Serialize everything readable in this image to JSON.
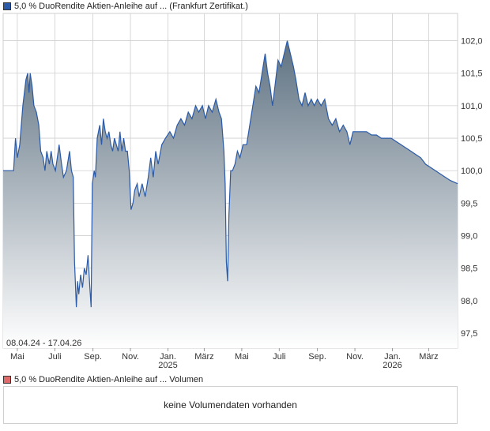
{
  "price_legend": "5,0 % DuoRendite Aktien-Anleihe auf ... (Frankfurt Zertifikat.)",
  "volume_legend": "5,0 % DuoRendite Aktien-Anleihe auf ... Volumen",
  "volume_message": "keine Volumendaten vorhanden",
  "colors": {
    "line": "#2a5aa8",
    "fill_top": "#5f7282",
    "fill_bottom": "#ffffff",
    "grid": "#cfcfcf",
    "volume_swatch": "#e06a6a"
  },
  "chart_data": {
    "type": "area",
    "date_range_label": "08.04.24 - 17.04.26",
    "x_labels": [
      {
        "text": "Mai",
        "sub": "",
        "date": "2024-05-01"
      },
      {
        "text": "Juli",
        "sub": "",
        "date": "2024-07-01"
      },
      {
        "text": "Sep.",
        "sub": "",
        "date": "2024-09-01"
      },
      {
        "text": "Nov.",
        "sub": "",
        "date": "2024-11-01"
      },
      {
        "text": "Jan.",
        "sub": "2025",
        "date": "2025-01-01"
      },
      {
        "text": "März",
        "sub": "",
        "date": "2025-03-01"
      },
      {
        "text": "Mai",
        "sub": "",
        "date": "2025-05-01"
      },
      {
        "text": "Juli",
        "sub": "",
        "date": "2025-07-01"
      },
      {
        "text": "Sep.",
        "sub": "",
        "date": "2025-09-01"
      },
      {
        "text": "Nov.",
        "sub": "",
        "date": "2025-11-01"
      },
      {
        "text": "Jan.",
        "sub": "2026",
        "date": "2026-01-01"
      },
      {
        "text": "März",
        "sub": "",
        "date": "2026-03-01"
      }
    ],
    "y_ticks": [
      "97,5",
      "98,0",
      "98,5",
      "99,0",
      "99,5",
      "100,0",
      "100,5",
      "101,0",
      "101,5",
      "102,0"
    ],
    "ylim": [
      97.27,
      102.42
    ],
    "xlim": [
      "2024-04-08",
      "2026-04-17"
    ],
    "grid": true,
    "series": [
      {
        "values": [
          [
            "2024-04-08",
            100.0
          ],
          [
            "2024-04-25",
            100.0
          ],
          [
            "2024-04-28",
            100.5
          ],
          [
            "2024-05-01",
            100.2
          ],
          [
            "2024-05-05",
            100.4
          ],
          [
            "2024-05-10",
            101.0
          ],
          [
            "2024-05-15",
            101.4
          ],
          [
            "2024-05-18",
            101.5
          ],
          [
            "2024-05-20",
            101.2
          ],
          [
            "2024-05-22",
            101.5
          ],
          [
            "2024-05-25",
            101.3
          ],
          [
            "2024-05-28",
            101.0
          ],
          [
            "2024-06-01",
            100.9
          ],
          [
            "2024-06-05",
            100.7
          ],
          [
            "2024-06-08",
            100.3
          ],
          [
            "2024-06-12",
            100.2
          ],
          [
            "2024-06-15",
            100.0
          ],
          [
            "2024-06-18",
            100.3
          ],
          [
            "2024-06-22",
            100.1
          ],
          [
            "2024-06-25",
            100.3
          ],
          [
            "2024-06-28",
            100.1
          ],
          [
            "2024-07-02",
            100.0
          ],
          [
            "2024-07-05",
            100.2
          ],
          [
            "2024-07-08",
            100.4
          ],
          [
            "2024-07-12",
            100.1
          ],
          [
            "2024-07-15",
            99.9
          ],
          [
            "2024-07-20",
            100.0
          ],
          [
            "2024-07-25",
            100.3
          ],
          [
            "2024-07-28",
            100.0
          ],
          [
            "2024-07-31",
            99.9
          ],
          [
            "2024-08-02",
            98.6
          ],
          [
            "2024-08-05",
            97.9
          ],
          [
            "2024-08-07",
            98.3
          ],
          [
            "2024-08-09",
            98.1
          ],
          [
            "2024-08-12",
            98.4
          ],
          [
            "2024-08-15",
            98.2
          ],
          [
            "2024-08-18",
            98.5
          ],
          [
            "2024-08-21",
            98.4
          ],
          [
            "2024-08-24",
            98.7
          ],
          [
            "2024-08-27",
            98.2
          ],
          [
            "2024-08-29",
            97.9
          ],
          [
            "2024-08-31",
            99.8
          ],
          [
            "2024-09-03",
            100.0
          ],
          [
            "2024-09-05",
            99.9
          ],
          [
            "2024-09-08",
            100.5
          ],
          [
            "2024-09-12",
            100.7
          ],
          [
            "2024-09-15",
            100.4
          ],
          [
            "2024-09-18",
            100.8
          ],
          [
            "2024-09-21",
            100.6
          ],
          [
            "2024-09-24",
            100.5
          ],
          [
            "2024-09-27",
            100.6
          ],
          [
            "2024-09-30",
            100.4
          ],
          [
            "2024-10-03",
            100.3
          ],
          [
            "2024-10-06",
            100.5
          ],
          [
            "2024-10-09",
            100.4
          ],
          [
            "2024-10-12",
            100.3
          ],
          [
            "2024-10-15",
            100.6
          ],
          [
            "2024-10-18",
            100.3
          ],
          [
            "2024-10-21",
            100.5
          ],
          [
            "2024-10-24",
            100.3
          ],
          [
            "2024-10-27",
            100.3
          ],
          [
            "2024-10-30",
            100.0
          ],
          [
            "2024-11-02",
            99.4
          ],
          [
            "2024-11-05",
            99.5
          ],
          [
            "2024-11-08",
            99.7
          ],
          [
            "2024-11-12",
            99.8
          ],
          [
            "2024-11-15",
            99.6
          ],
          [
            "2024-11-20",
            99.8
          ],
          [
            "2024-11-25",
            99.6
          ],
          [
            "2024-11-30",
            99.9
          ],
          [
            "2024-12-04",
            100.2
          ],
          [
            "2024-12-08",
            99.9
          ],
          [
            "2024-12-12",
            100.3
          ],
          [
            "2024-12-16",
            100.1
          ],
          [
            "2024-12-22",
            100.4
          ],
          [
            "2024-12-28",
            100.5
          ],
          [
            "2025-01-04",
            100.6
          ],
          [
            "2025-01-10",
            100.5
          ],
          [
            "2025-01-16",
            100.7
          ],
          [
            "2025-01-22",
            100.8
          ],
          [
            "2025-01-28",
            100.7
          ],
          [
            "2025-02-03",
            100.9
          ],
          [
            "2025-02-09",
            100.8
          ],
          [
            "2025-02-15",
            101.0
          ],
          [
            "2025-02-20",
            100.9
          ],
          [
            "2025-02-26",
            101.0
          ],
          [
            "2025-03-03",
            100.8
          ],
          [
            "2025-03-08",
            101.0
          ],
          [
            "2025-03-14",
            100.9
          ],
          [
            "2025-03-20",
            101.1
          ],
          [
            "2025-03-25",
            100.9
          ],
          [
            "2025-03-29",
            100.8
          ],
          [
            "2025-04-02",
            100.3
          ],
          [
            "2025-04-04",
            99.8
          ],
          [
            "2025-04-06",
            98.6
          ],
          [
            "2025-04-08",
            98.3
          ],
          [
            "2025-04-10",
            99.3
          ],
          [
            "2025-04-13",
            100.0
          ],
          [
            "2025-04-16",
            100.0
          ],
          [
            "2025-04-20",
            100.1
          ],
          [
            "2025-04-24",
            100.3
          ],
          [
            "2025-04-28",
            100.2
          ],
          [
            "2025-05-03",
            100.4
          ],
          [
            "2025-05-09",
            100.4
          ],
          [
            "2025-05-14",
            100.7
          ],
          [
            "2025-05-19",
            101.0
          ],
          [
            "2025-05-24",
            101.3
          ],
          [
            "2025-05-29",
            101.2
          ],
          [
            "2025-06-03",
            101.5
          ],
          [
            "2025-06-08",
            101.8
          ],
          [
            "2025-06-12",
            101.5
          ],
          [
            "2025-06-16",
            101.3
          ],
          [
            "2025-06-20",
            101.0
          ],
          [
            "2025-06-24",
            101.3
          ],
          [
            "2025-06-29",
            101.7
          ],
          [
            "2025-07-04",
            101.6
          ],
          [
            "2025-07-09",
            101.8
          ],
          [
            "2025-07-14",
            102.0
          ],
          [
            "2025-07-19",
            101.8
          ],
          [
            "2025-07-24",
            101.6
          ],
          [
            "2025-07-28",
            101.4
          ],
          [
            "2025-08-02",
            101.1
          ],
          [
            "2025-08-07",
            101.0
          ],
          [
            "2025-08-12",
            101.2
          ],
          [
            "2025-08-17",
            101.0
          ],
          [
            "2025-08-22",
            101.1
          ],
          [
            "2025-08-27",
            101.0
          ],
          [
            "2025-09-01",
            101.1
          ],
          [
            "2025-09-07",
            101.0
          ],
          [
            "2025-09-13",
            101.1
          ],
          [
            "2025-09-19",
            100.8
          ],
          [
            "2025-09-25",
            100.7
          ],
          [
            "2025-10-01",
            100.8
          ],
          [
            "2025-10-07",
            100.6
          ],
          [
            "2025-10-13",
            100.7
          ],
          [
            "2025-10-19",
            100.6
          ],
          [
            "2025-10-24",
            100.4
          ],
          [
            "2025-10-29",
            100.6
          ],
          [
            "2025-11-04",
            100.6
          ],
          [
            "2025-11-12",
            100.6
          ],
          [
            "2025-11-20",
            100.6
          ],
          [
            "2025-11-28",
            100.55
          ],
          [
            "2025-12-06",
            100.55
          ],
          [
            "2025-12-14",
            100.5
          ],
          [
            "2025-12-22",
            100.5
          ],
          [
            "2025-12-30",
            100.5
          ],
          [
            "2026-01-07",
            100.45
          ],
          [
            "2026-01-15",
            100.4
          ],
          [
            "2026-01-23",
            100.35
          ],
          [
            "2026-01-31",
            100.3
          ],
          [
            "2026-02-08",
            100.25
          ],
          [
            "2026-02-16",
            100.2
          ],
          [
            "2026-02-24",
            100.1
          ],
          [
            "2026-03-04",
            100.05
          ],
          [
            "2026-03-12",
            100.0
          ],
          [
            "2026-03-20",
            99.95
          ],
          [
            "2026-03-28",
            99.9
          ],
          [
            "2026-04-05",
            99.85
          ],
          [
            "2026-04-17",
            99.8
          ]
        ]
      }
    ]
  }
}
